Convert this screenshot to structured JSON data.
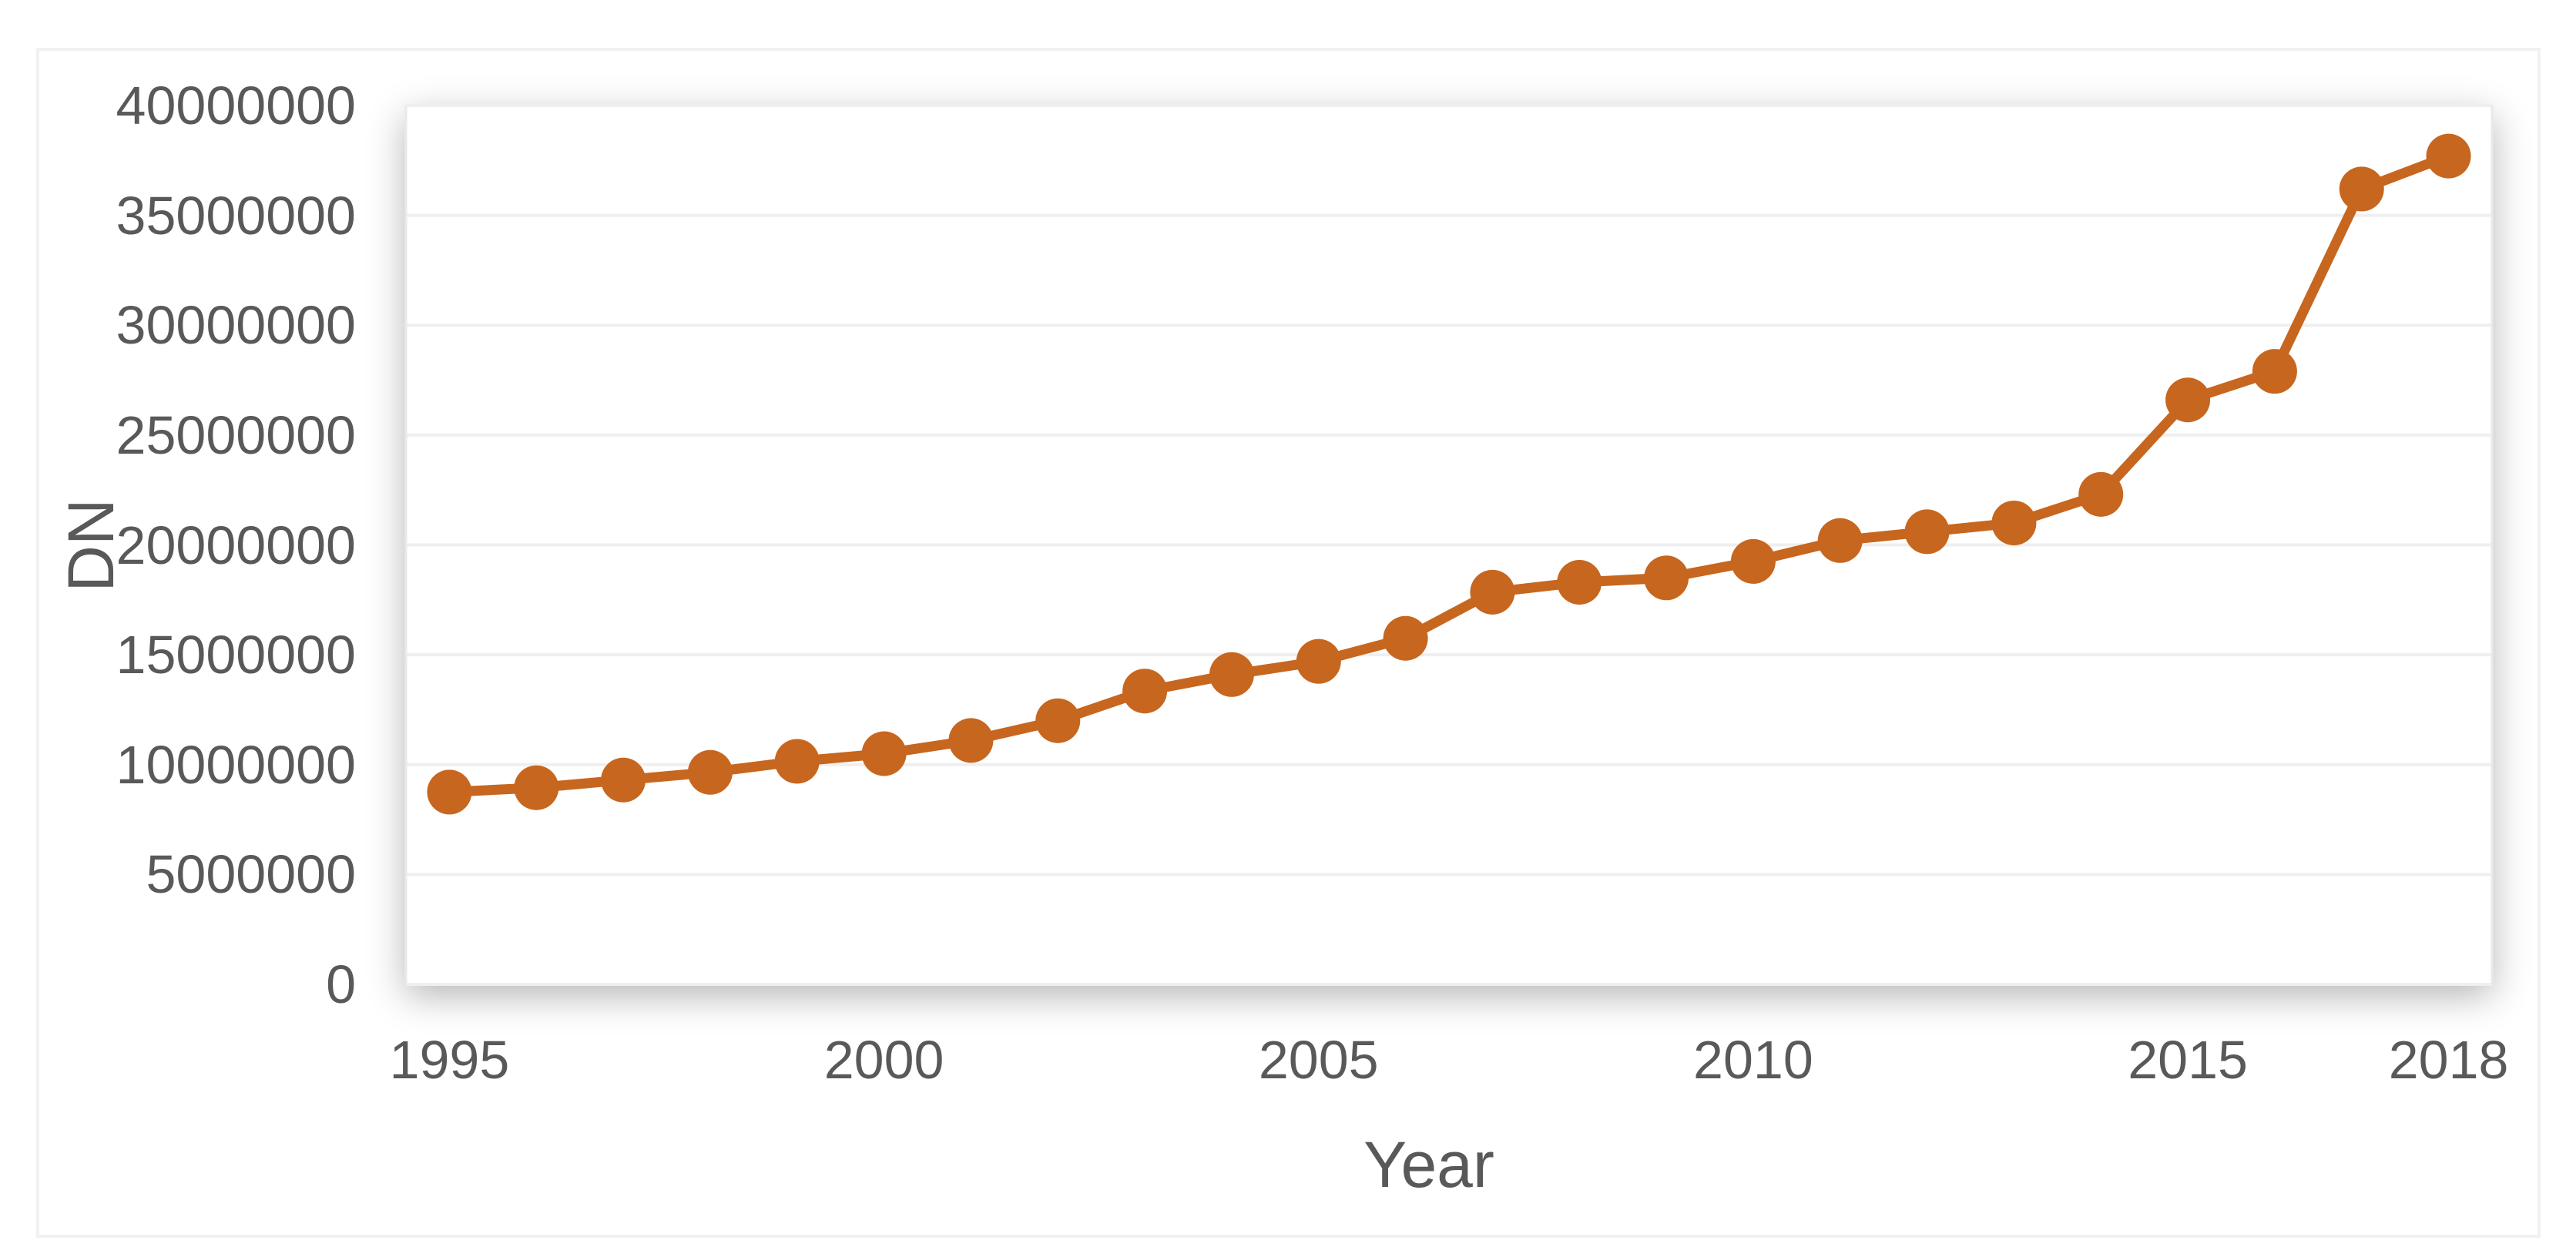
{
  "chart_data": {
    "type": "line",
    "title": "",
    "xlabel": "Year",
    "ylabel": "DN",
    "x": [
      1995,
      1996,
      1997,
      1998,
      1999,
      2000,
      2001,
      2002,
      2003,
      2004,
      2005,
      2006,
      2007,
      2008,
      2009,
      2010,
      2011,
      2012,
      2013,
      2014,
      2015,
      2016,
      2017,
      2018
    ],
    "series": [
      {
        "name": "DN",
        "values": [
          8750000,
          8950000,
          9300000,
          9650000,
          10150000,
          10500000,
          11100000,
          12000000,
          13350000,
          14100000,
          14700000,
          15750000,
          17850000,
          18300000,
          18500000,
          19250000,
          20200000,
          20600000,
          21000000,
          22300000,
          26600000,
          27900000,
          36200000,
          37700000
        ]
      }
    ],
    "ylim": [
      0,
      40000000
    ],
    "yticks": [
      0,
      5000000,
      10000000,
      15000000,
      20000000,
      25000000,
      30000000,
      35000000,
      40000000
    ],
    "xticks": [
      1995,
      2000,
      2005,
      2010,
      2015,
      2018
    ],
    "grid": "horizontal-major",
    "legend": "none",
    "marker": "circle",
    "line_color": "#C7661E",
    "text_color": "#595959",
    "gridline_color": "#EFEFEF",
    "axis_edge_color": "#E9E9E9",
    "border_color": "#F1F1F1"
  }
}
